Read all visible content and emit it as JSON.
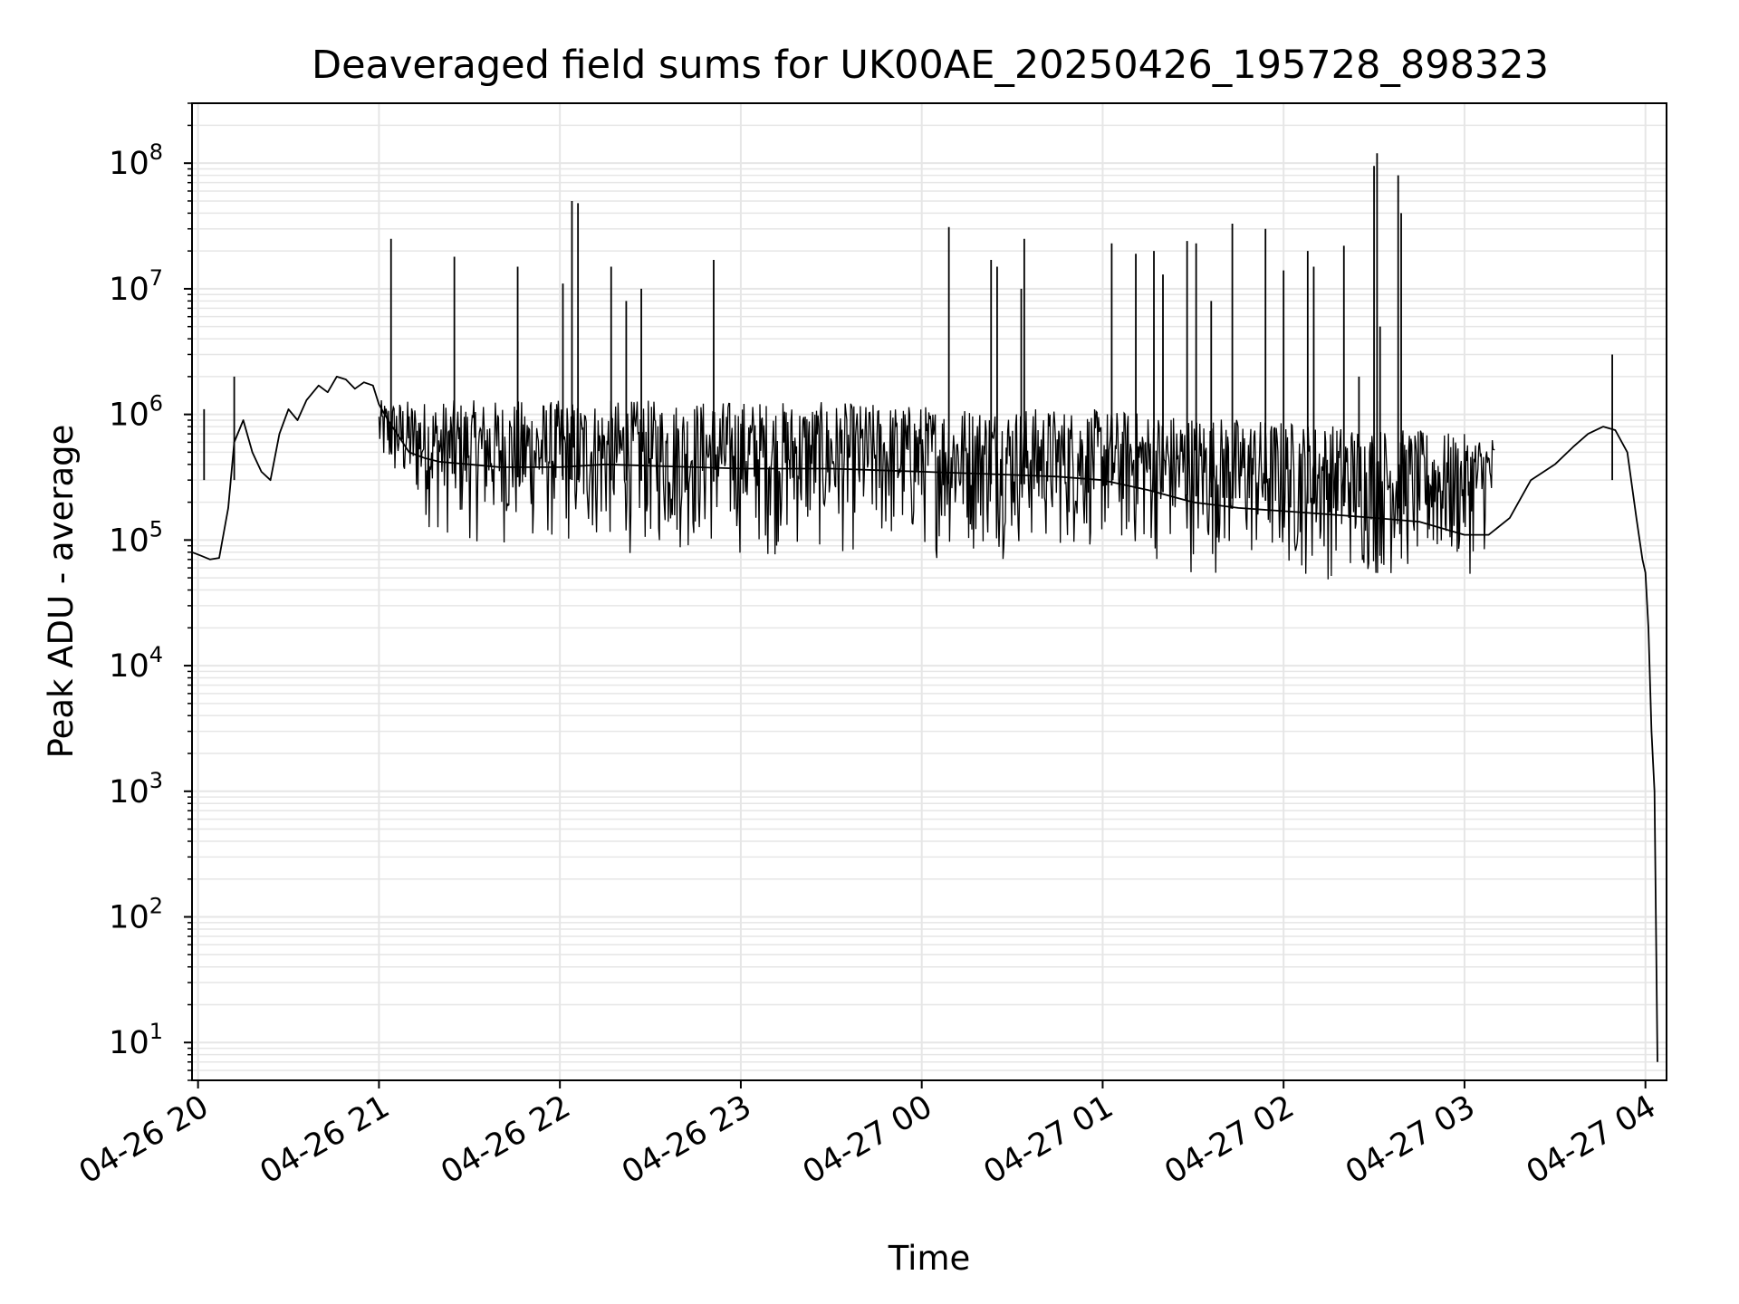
{
  "chart_data": {
    "type": "line",
    "title": "Deaveraged field sums for UK00AE_20250426_195728_898323",
    "xlabel": "Time",
    "ylabel": "Peak ADU - average",
    "yscale": "log",
    "ylim": [
      5,
      300000000
    ],
    "xlim": [
      "2025-04-26 19:58",
      "2025-04-27 04:07"
    ],
    "grid": true,
    "line_color": "#000000",
    "grid_color": "#e6e6e6",
    "x_ticks": [
      {
        "value": "2025-04-26 20:00",
        "label": "04-26 20"
      },
      {
        "value": "2025-04-26 21:00",
        "label": "04-26 21"
      },
      {
        "value": "2025-04-26 22:00",
        "label": "04-26 22"
      },
      {
        "value": "2025-04-26 23:00",
        "label": "04-26 23"
      },
      {
        "value": "2025-04-27 00:00",
        "label": "04-27 00"
      },
      {
        "value": "2025-04-27 01:00",
        "label": "04-27 01"
      },
      {
        "value": "2025-04-27 02:00",
        "label": "04-27 02"
      },
      {
        "value": "2025-04-27 03:00",
        "label": "04-27 03"
      },
      {
        "value": "2025-04-27 04:00",
        "label": "04-27 04"
      }
    ],
    "y_ticks": [
      {
        "value": 10,
        "base": "10",
        "exp": "1"
      },
      {
        "value": 100,
        "base": "10",
        "exp": "2"
      },
      {
        "value": 1000,
        "base": "10",
        "exp": "3"
      },
      {
        "value": 10000,
        "base": "10",
        "exp": "4"
      },
      {
        "value": 100000,
        "base": "10",
        "exp": "5"
      },
      {
        "value": 1000000,
        "base": "10",
        "exp": "6"
      },
      {
        "value": 10000000,
        "base": "10",
        "exp": "7"
      },
      {
        "value": 100000000,
        "base": "10",
        "exp": "8"
      }
    ],
    "series": [
      {
        "x": [
          "2025-04-26 19:58",
          "2025-04-26 20:01",
          "2025-04-26 20:04",
          "2025-04-26 20:07",
          "2025-04-26 20:10",
          "2025-04-26 20:12",
          "2025-04-26 20:15",
          "2025-04-26 20:18",
          "2025-04-26 20:21",
          "2025-04-26 20:24",
          "2025-04-26 20:27",
          "2025-04-26 20:30",
          "2025-04-26 20:33",
          "2025-04-26 20:36",
          "2025-04-26 20:40",
          "2025-04-26 20:43",
          "2025-04-26 20:46",
          "2025-04-26 20:49",
          "2025-04-26 20:52",
          "2025-04-26 20:55",
          "2025-04-26 20:58",
          "2025-04-26 21:00",
          "2025-04-26 21:03",
          "2025-04-26 21:06",
          "2025-04-26 21:10",
          "2025-04-26 21:15",
          "2025-04-26 21:20",
          "2025-04-26 21:30",
          "2025-04-26 21:40",
          "2025-04-26 21:50",
          "2025-04-26 22:00",
          "2025-04-26 22:15",
          "2025-04-26 22:30",
          "2025-04-26 22:45",
          "2025-04-26 23:00",
          "2025-04-26 23:15",
          "2025-04-26 23:30",
          "2025-04-26 23:45",
          "2025-04-27 00:00",
          "2025-04-27 00:15",
          "2025-04-27 00:30",
          "2025-04-27 00:45",
          "2025-04-27 01:00",
          "2025-04-27 01:15",
          "2025-04-27 01:30",
          "2025-04-27 01:45",
          "2025-04-27 02:00",
          "2025-04-27 02:15",
          "2025-04-27 02:30",
          "2025-04-27 02:45",
          "2025-04-27 03:00",
          "2025-04-27 03:08",
          "2025-04-27 03:15",
          "2025-04-27 03:22",
          "2025-04-27 03:30",
          "2025-04-27 03:36",
          "2025-04-27 03:41",
          "2025-04-27 03:46",
          "2025-04-27 03:50",
          "2025-04-27 03:54",
          "2025-04-27 03:57",
          "2025-04-27 03:59",
          "2025-04-27 04:00",
          "2025-04-27 04:01",
          "2025-04-27 04:02",
          "2025-04-27 04:03",
          "2025-04-27 04:04"
        ],
        "values": [
          80000,
          75000,
          70000,
          72000,
          180000,
          600000,
          900000,
          500000,
          350000,
          300000,
          700000,
          1100000,
          900000,
          1300000,
          1700000,
          1500000,
          2000000,
          1900000,
          1600000,
          1800000,
          1700000,
          1200000,
          900000,
          700000,
          500000,
          450000,
          420000,
          400000,
          380000,
          380000,
          380000,
          400000,
          390000,
          380000,
          370000,
          370000,
          370000,
          360000,
          350000,
          340000,
          330000,
          320000,
          300000,
          250000,
          200000,
          180000,
          170000,
          160000,
          150000,
          140000,
          110000,
          110000,
          150000,
          300000,
          400000,
          550000,
          700000,
          800000,
          750000,
          500000,
          150000,
          70000,
          55000,
          20000,
          3000,
          1000,
          7
        ]
      }
    ],
    "band": {
      "x": [
        "2025-04-26 21:00",
        "2025-04-26 21:20",
        "2025-04-26 22:00",
        "2025-04-26 23:00",
        "2025-04-27 00:00",
        "2025-04-27 01:00",
        "2025-04-27 01:30",
        "2025-04-27 02:00",
        "2025-04-27 02:30",
        "2025-04-27 03:00",
        "2025-04-27 03:10"
      ],
      "low": [
        300000,
        90000,
        70000,
        65000,
        65000,
        70000,
        50000,
        45000,
        40000,
        45000,
        80000
      ],
      "high": [
        1300000,
        1300000,
        1300000,
        1300000,
        1200000,
        1100000,
        1000000,
        900000,
        800000,
        700000,
        700000
      ]
    },
    "spikes": [
      {
        "x": "2025-04-26 20:02",
        "value": 1100000
      },
      {
        "x": "2025-04-26 20:12",
        "value": 2000000
      },
      {
        "x": "2025-04-26 21:04",
        "value": 25000000
      },
      {
        "x": "2025-04-26 21:25",
        "value": 18000000
      },
      {
        "x": "2025-04-26 21:46",
        "value": 15000000
      },
      {
        "x": "2025-04-26 22:01",
        "value": 11000000
      },
      {
        "x": "2025-04-26 22:04",
        "value": 50000000
      },
      {
        "x": "2025-04-26 22:06",
        "value": 48000000
      },
      {
        "x": "2025-04-26 22:17",
        "value": 15000000
      },
      {
        "x": "2025-04-26 22:22",
        "value": 8000000
      },
      {
        "x": "2025-04-26 22:27",
        "value": 10000000
      },
      {
        "x": "2025-04-26 22:51",
        "value": 17000000
      },
      {
        "x": "2025-04-27 00:09",
        "value": 31000000
      },
      {
        "x": "2025-04-27 00:23",
        "value": 17000000
      },
      {
        "x": "2025-04-27 00:25",
        "value": 15000000
      },
      {
        "x": "2025-04-27 00:33",
        "value": 10000000
      },
      {
        "x": "2025-04-27 00:34",
        "value": 25000000
      },
      {
        "x": "2025-04-27 01:03",
        "value": 23000000
      },
      {
        "x": "2025-04-27 01:11",
        "value": 19000000
      },
      {
        "x": "2025-04-27 01:17",
        "value": 20000000
      },
      {
        "x": "2025-04-27 01:20",
        "value": 13000000
      },
      {
        "x": "2025-04-27 01:28",
        "value": 24000000
      },
      {
        "x": "2025-04-27 01:31",
        "value": 23000000
      },
      {
        "x": "2025-04-27 01:36",
        "value": 8000000
      },
      {
        "x": "2025-04-27 01:43",
        "value": 33000000
      },
      {
        "x": "2025-04-27 01:54",
        "value": 30000000
      },
      {
        "x": "2025-04-27 02:00",
        "value": 14000000
      },
      {
        "x": "2025-04-27 02:08",
        "value": 20000000
      },
      {
        "x": "2025-04-27 02:10",
        "value": 15000000
      },
      {
        "x": "2025-04-27 02:20",
        "value": 22000000
      },
      {
        "x": "2025-04-27 02:25",
        "value": 2000000
      },
      {
        "x": "2025-04-27 02:30",
        "value": 95000000
      },
      {
        "x": "2025-04-27 02:31",
        "value": 120000000
      },
      {
        "x": "2025-04-27 02:32",
        "value": 5000000
      },
      {
        "x": "2025-04-27 02:38",
        "value": 80000000
      },
      {
        "x": "2025-04-27 02:39",
        "value": 40000000
      },
      {
        "x": "2025-04-27 03:49",
        "value": 3000000
      }
    ]
  }
}
